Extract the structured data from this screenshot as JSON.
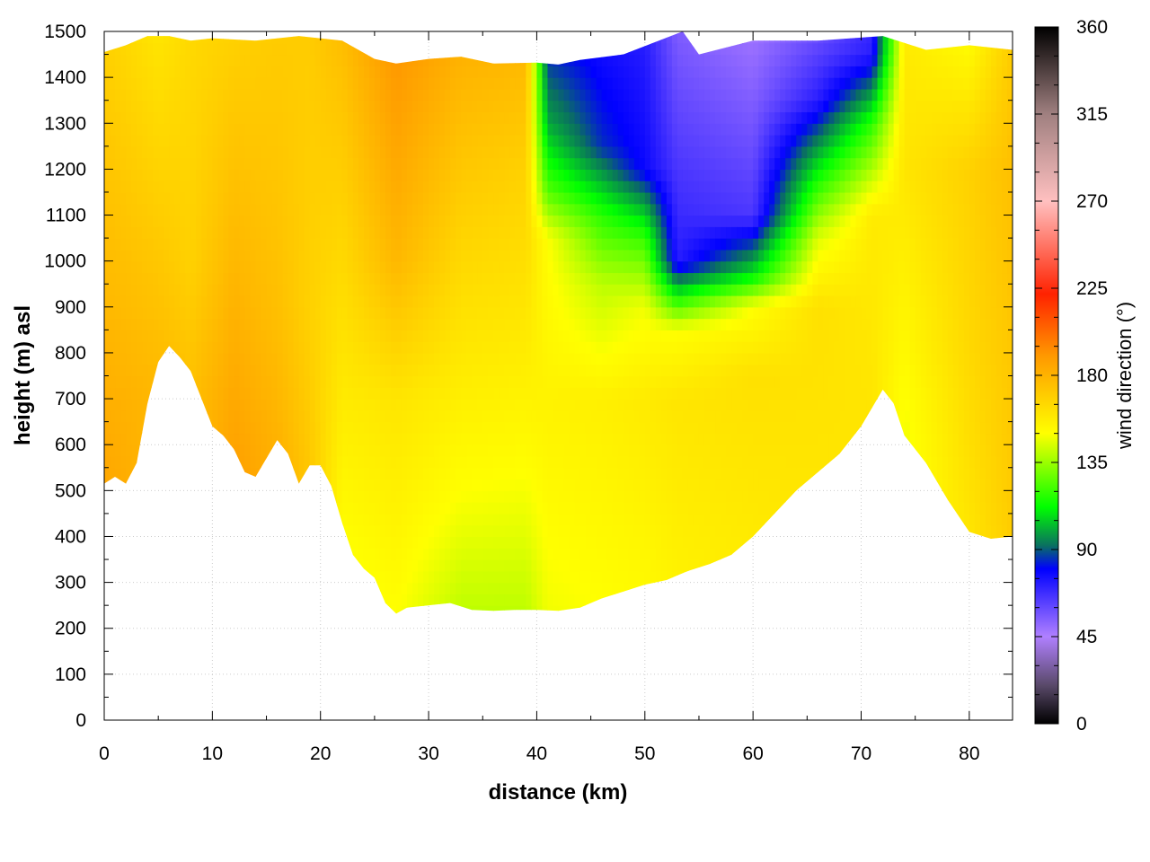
{
  "chart_data": {
    "type": "heatmap",
    "title": "",
    "xlabel": "distance (km)",
    "ylabel": "height (m) asl",
    "xlim": [
      0,
      84
    ],
    "ylim": [
      0,
      1500
    ],
    "x_ticks": [
      0,
      10,
      20,
      30,
      40,
      50,
      60,
      70,
      80
    ],
    "y_ticks": [
      0,
      100,
      200,
      300,
      400,
      500,
      600,
      700,
      800,
      900,
      1000,
      1100,
      1200,
      1300,
      1400,
      1500
    ],
    "x_tick_labels": [
      "0",
      "10",
      "20",
      "30",
      "40",
      "50",
      "60",
      "70",
      "80"
    ],
    "y_tick_labels": [
      "0",
      "100",
      "200",
      "300",
      "400",
      "500",
      "600",
      "700",
      "800",
      "900",
      "1000",
      "1100",
      "1200",
      "1300",
      "1400",
      "1500"
    ],
    "grid": true,
    "colorbar": {
      "label": "wind direction (°)",
      "range": [
        0,
        360
      ],
      "ticks": [
        0,
        45,
        90,
        135,
        180,
        225,
        270,
        315,
        360
      ],
      "tick_labels": [
        "0",
        "45",
        "90",
        "135",
        "180",
        "225",
        "270",
        "315",
        "360"
      ],
      "colors": [
        {
          "value": 0,
          "color": "#000000"
        },
        {
          "value": 20,
          "color": "#5a4a6a"
        },
        {
          "value": 45,
          "color": "#b080ff"
        },
        {
          "value": 80,
          "color": "#0000ff"
        },
        {
          "value": 92,
          "color": "#0a7060"
        },
        {
          "value": 112,
          "color": "#00ff00"
        },
        {
          "value": 150,
          "color": "#ffff00"
        },
        {
          "value": 190,
          "color": "#ff9900"
        },
        {
          "value": 222,
          "color": "#ff2200"
        },
        {
          "value": 270,
          "color": "#ffc0c0"
        },
        {
          "value": 315,
          "color": "#a08080"
        },
        {
          "value": 360,
          "color": "#000000"
        }
      ]
    },
    "terrain": {
      "x": [
        0,
        1,
        2,
        3,
        4,
        5,
        6,
        7,
        8,
        9,
        10,
        11,
        12,
        13,
        14,
        15,
        16,
        17,
        18,
        19,
        20,
        21,
        22,
        23,
        24,
        25,
        26,
        27,
        28,
        30,
        32,
        34,
        36,
        38,
        40,
        42,
        44,
        46,
        48,
        50,
        52,
        54,
        56,
        58,
        60,
        62,
        64,
        66,
        68,
        70,
        72,
        73,
        74,
        76,
        78,
        80,
        82,
        84
      ],
      "height": [
        515,
        530,
        515,
        560,
        690,
        780,
        815,
        790,
        760,
        700,
        640,
        620,
        590,
        540,
        530,
        570,
        610,
        580,
        515,
        555,
        555,
        510,
        430,
        360,
        330,
        310,
        255,
        232,
        245,
        250,
        255,
        240,
        238,
        240,
        240,
        238,
        245,
        265,
        280,
        295,
        305,
        325,
        340,
        360,
        400,
        450,
        500,
        540,
        580,
        640,
        720,
        690,
        620,
        560,
        480,
        410,
        395,
        400
      ]
    },
    "top_boundary": {
      "x": [
        0,
        2,
        4,
        6,
        8,
        10,
        14,
        18,
        22,
        25,
        27,
        30,
        33,
        36,
        40,
        42,
        44,
        48,
        53.5,
        55,
        60,
        66,
        72,
        76,
        80,
        84
      ],
      "height": [
        1455,
        1470,
        1490,
        1490,
        1480,
        1485,
        1480,
        1490,
        1480,
        1440,
        1430,
        1440,
        1445,
        1430,
        1432,
        1428,
        1438,
        1450,
        1500,
        1450,
        1480,
        1480,
        1490,
        1460,
        1470,
        1460
      ]
    },
    "direction_profiles": [
      {
        "x": 0,
        "heights": [
          500,
          900,
          1500
        ],
        "directions": [
          185,
          178,
          168
        ]
      },
      {
        "x": 5,
        "heights": [
          700,
          1000,
          1500
        ],
        "directions": [
          178,
          172,
          160
        ]
      },
      {
        "x": 8,
        "heights": [
          700,
          1000,
          1500
        ],
        "directions": [
          175,
          168,
          165
        ]
      },
      {
        "x": 12,
        "heights": [
          500,
          900,
          1500
        ],
        "directions": [
          188,
          180,
          168
        ]
      },
      {
        "x": 16,
        "heights": [
          500,
          900,
          1500
        ],
        "directions": [
          182,
          175,
          170
        ]
      },
      {
        "x": 19,
        "heights": [
          500,
          900,
          1500
        ],
        "directions": [
          172,
          168,
          170
        ]
      },
      {
        "x": 22,
        "heights": [
          300,
          700,
          1500
        ],
        "directions": [
          148,
          158,
          176
        ]
      },
      {
        "x": 27,
        "heights": [
          230,
          700,
          1000,
          1500
        ],
        "directions": [
          150,
          160,
          178,
          192
        ]
      },
      {
        "x": 33,
        "heights": [
          230,
          500,
          1000,
          1500
        ],
        "directions": [
          140,
          150,
          165,
          182
        ]
      },
      {
        "x": 39,
        "heights": [
          230,
          600,
          1200,
          1500
        ],
        "directions": [
          140,
          152,
          168,
          180
        ]
      },
      {
        "x": 41,
        "heights": [
          230,
          700,
          1050,
          1150,
          1300,
          1500
        ],
        "directions": [
          148,
          155,
          150,
          125,
          100,
          80
        ]
      },
      {
        "x": 46,
        "heights": [
          240,
          700,
          950,
          1100,
          1250,
          1500
        ],
        "directions": [
          150,
          156,
          140,
          118,
          85,
          75
        ]
      },
      {
        "x": 50,
        "heights": [
          290,
          700,
          900,
          1050,
          1200,
          1500
        ],
        "directions": [
          152,
          158,
          148,
          120,
          78,
          72
        ]
      },
      {
        "x": 53,
        "heights": [
          310,
          700,
          850,
          920,
          1000,
          1500
        ],
        "directions": [
          155,
          160,
          150,
          115,
          72,
          55
        ]
      },
      {
        "x": 60,
        "heights": [
          400,
          750,
          900,
          970,
          1100,
          1500
        ],
        "directions": [
          158,
          162,
          150,
          110,
          65,
          48
        ]
      },
      {
        "x": 66,
        "heights": [
          540,
          900,
          1050,
          1200,
          1350,
          1500
        ],
        "directions": [
          160,
          162,
          145,
          110,
          72,
          58
        ]
      },
      {
        "x": 71,
        "heights": [
          680,
          1100,
          1300,
          1450,
          1500
        ],
        "directions": [
          160,
          158,
          118,
          72,
          70
        ]
      },
      {
        "x": 74,
        "heights": [
          620,
          800,
          1200,
          1500
        ],
        "directions": [
          148,
          152,
          160,
          158
        ]
      },
      {
        "x": 80,
        "heights": [
          400,
          800,
          1200,
          1500
        ],
        "directions": [
          160,
          165,
          168,
          150
        ]
      },
      {
        "x": 84,
        "heights": [
          400,
          800,
          1200,
          1500
        ],
        "directions": [
          170,
          172,
          175,
          170
        ]
      }
    ]
  }
}
